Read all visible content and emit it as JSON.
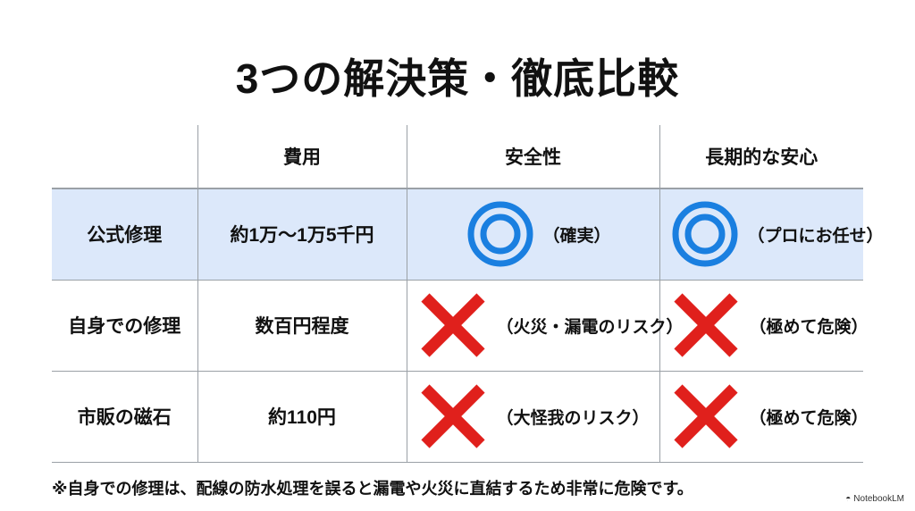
{
  "title": "3つの解決策・徹底比較",
  "table": {
    "headers": [
      "",
      "費用",
      "安全性",
      "長期的な安心"
    ],
    "rows": [
      {
        "name": "公式修理",
        "cost": "約1万〜1万5千円",
        "safety": {
          "mark": "double-circle",
          "note": "（確実）"
        },
        "longterm": {
          "mark": "double-circle",
          "note": "（プロにお任せ）"
        },
        "highlight": true
      },
      {
        "name": "自身での修理",
        "cost": "数百円程度",
        "safety": {
          "mark": "cross",
          "note": "（火災・漏電のリスク）"
        },
        "longterm": {
          "mark": "cross",
          "note": "（極めて危険）"
        }
      },
      {
        "name": "市販の磁石",
        "cost": "約110円",
        "safety": {
          "mark": "cross",
          "note": "（大怪我のリスク）"
        },
        "longterm": {
          "mark": "cross",
          "note": "（極めて危険）"
        }
      }
    ]
  },
  "footnote": "※自身での修理は、配線の防水処理を誤ると漏電や火災に直結するため非常に危険です。",
  "brand": "NotebookLM",
  "colors": {
    "circle": "#1a7fe0",
    "cross": "#e0201c",
    "highlight": "#dce8fa"
  }
}
